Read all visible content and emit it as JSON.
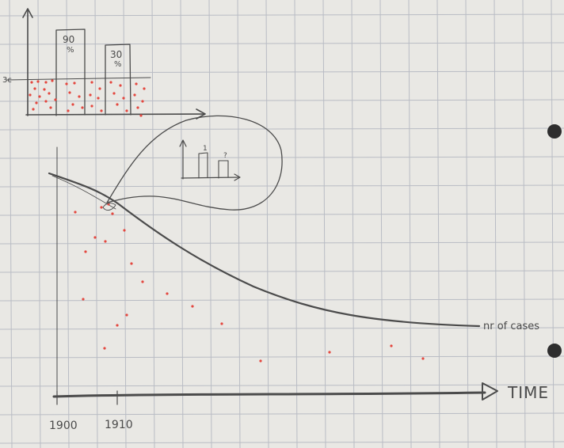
{
  "top_chart": {
    "bars": [
      {
        "label": "90",
        "unit": "%"
      },
      {
        "label": "30",
        "unit": "%"
      }
    ],
    "threshold_label": "3c"
  },
  "main_chart": {
    "curve_label": "nr of cases",
    "x_axis_label": "TIME",
    "x_ticks": [
      "1900",
      "1910"
    ]
  },
  "inset": {
    "bar_labels": [
      "1",
      "?"
    ]
  },
  "colors": {
    "paper": "#e9e8e4",
    "grid": "#b9bcc4",
    "pencil": "#4b4b4b",
    "red_dots": "#e4473f"
  }
}
